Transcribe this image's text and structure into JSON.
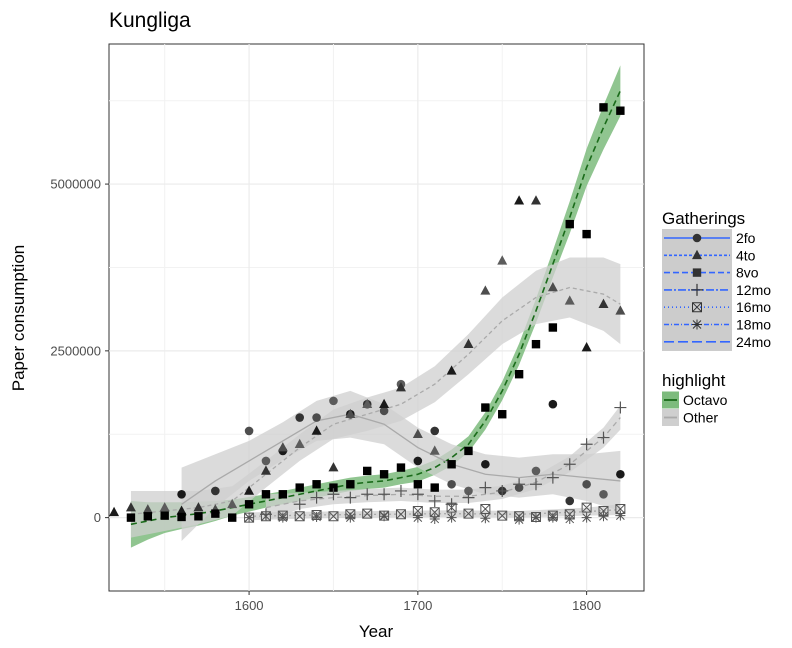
{
  "chart_data": {
    "type": "scatter",
    "title": "Kungliga",
    "xlabel": "Year",
    "ylabel": "Paper consumption",
    "xlim": [
      1517,
      1834
    ],
    "ylim": [
      -1100000,
      7100000
    ],
    "xticks": [
      1600,
      1700,
      1800
    ],
    "yticks": [
      0,
      2500000,
      5000000
    ],
    "xtick_labels": [
      "1600",
      "1700",
      "1800"
    ],
    "ytick_labels": [
      "0",
      "2500000",
      "5000000"
    ],
    "grid": true,
    "legend_position": "right",
    "legend_gatherings_title": "Gatherings",
    "legend_highlight_title": "highlight",
    "colors": {
      "octavo": "#1a6b1a",
      "octavo_band": "#7dbb7d",
      "other_line": "#aaaaaa",
      "other_band": "#cfcfcf",
      "legend_line": "#3366ff"
    },
    "series": [
      {
        "name": "2fo",
        "shape": "circle",
        "x": [
          1560,
          1580,
          1600,
          1610,
          1620,
          1630,
          1640,
          1650,
          1660,
          1670,
          1680,
          1690,
          1700,
          1710,
          1720,
          1730,
          1740,
          1750,
          1760,
          1770,
          1780,
          1790,
          1800,
          1810,
          1820
        ],
        "y": [
          350000,
          400000,
          1300000,
          850000,
          1000000,
          1500000,
          1500000,
          1750000,
          1550000,
          1700000,
          1600000,
          2000000,
          850000,
          1300000,
          500000,
          400000,
          800000,
          400000,
          450000,
          700000,
          1700000,
          250000,
          500000,
          350000,
          650000
        ]
      },
      {
        "name": "4to",
        "shape": "triangle",
        "x": [
          1520,
          1530,
          1540,
          1550,
          1560,
          1570,
          1580,
          1590,
          1600,
          1610,
          1620,
          1630,
          1640,
          1650,
          1660,
          1670,
          1680,
          1690,
          1700,
          1710,
          1720,
          1730,
          1740,
          1750,
          1760,
          1770,
          1780,
          1790,
          1800,
          1810,
          1820
        ],
        "y": [
          80000,
          150000,
          120000,
          150000,
          100000,
          150000,
          120000,
          200000,
          400000,
          700000,
          1050000,
          1100000,
          1300000,
          750000,
          1550000,
          1700000,
          1700000,
          1950000,
          1250000,
          1000000,
          2200000,
          2600000,
          3400000,
          3850000,
          4750000,
          4750000,
          3450000,
          3250000,
          2550000,
          3200000,
          3100000
        ]
      },
      {
        "name": "8vo",
        "shape": "square",
        "x": [
          1530,
          1540,
          1550,
          1560,
          1570,
          1580,
          1590,
          1600,
          1610,
          1620,
          1630,
          1640,
          1650,
          1660,
          1670,
          1680,
          1690,
          1700,
          1710,
          1720,
          1730,
          1740,
          1750,
          1760,
          1770,
          1780,
          1790,
          1800,
          1810,
          1820
        ],
        "y": [
          0,
          20000,
          30000,
          10000,
          20000,
          60000,
          0,
          200000,
          350000,
          350000,
          450000,
          500000,
          450000,
          500000,
          700000,
          650000,
          750000,
          500000,
          450000,
          800000,
          1000000,
          1650000,
          1550000,
          2150000,
          2600000,
          2850000,
          4400000,
          4250000,
          6150000,
          6100000
        ]
      },
      {
        "name": "12mo",
        "shape": "plus",
        "x": [
          1610,
          1630,
          1640,
          1650,
          1660,
          1670,
          1680,
          1690,
          1700,
          1710,
          1720,
          1730,
          1740,
          1750,
          1760,
          1770,
          1780,
          1790,
          1800,
          1810,
          1820
        ],
        "y": [
          50000,
          200000,
          300000,
          350000,
          300000,
          350000,
          350000,
          400000,
          350000,
          250000,
          200000,
          300000,
          450000,
          400000,
          500000,
          500000,
          600000,
          800000,
          1100000,
          1200000,
          1650000
        ]
      },
      {
        "name": "16mo",
        "shape": "boxx",
        "x": [
          1600,
          1610,
          1620,
          1630,
          1640,
          1650,
          1660,
          1670,
          1680,
          1690,
          1700,
          1710,
          1720,
          1730,
          1740,
          1750,
          1760,
          1770,
          1780,
          1790,
          1800,
          1810,
          1820
        ],
        "y": [
          0,
          20000,
          30000,
          20000,
          40000,
          20000,
          50000,
          60000,
          30000,
          50000,
          100000,
          80000,
          150000,
          60000,
          130000,
          30000,
          20000,
          10000,
          30000,
          50000,
          150000,
          100000,
          130000
        ]
      },
      {
        "name": "18mo",
        "shape": "star",
        "x": [
          1600,
          1620,
          1640,
          1660,
          1680,
          1700,
          1710,
          1720,
          1740,
          1760,
          1770,
          1780,
          1790,
          1800,
          1810,
          1820
        ],
        "y": [
          0,
          0,
          10000,
          0,
          20000,
          0,
          -20000,
          0,
          -10000,
          -30000,
          0,
          0,
          -20000,
          0,
          20000,
          30000
        ]
      },
      {
        "name": "24mo",
        "shape": "none",
        "x": [],
        "y": []
      }
    ],
    "smooth": [
      {
        "name": "Octavo",
        "dash": "6,4",
        "x": [
          1530,
          1540,
          1550,
          1560,
          1570,
          1580,
          1590,
          1600,
          1610,
          1620,
          1630,
          1640,
          1650,
          1660,
          1670,
          1680,
          1690,
          1700,
          1710,
          1720,
          1730,
          1740,
          1750,
          1760,
          1770,
          1780,
          1790,
          1800,
          1810,
          1820
        ],
        "y": [
          -100000,
          -50000,
          0,
          30000,
          60000,
          100000,
          150000,
          200000,
          250000,
          300000,
          350000,
          400000,
          450000,
          500000,
          530000,
          550000,
          600000,
          650000,
          750000,
          900000,
          1100000,
          1450000,
          1900000,
          2450000,
          3100000,
          3800000,
          4500000,
          5250000,
          5850000,
          6400000
        ],
        "band": [
          350000,
          280000,
          230000,
          200000,
          180000,
          150000,
          120000,
          110000,
          100000,
          100000,
          100000,
          100000,
          100000,
          100000,
          100000,
          100000,
          100000,
          110000,
          110000,
          120000,
          120000,
          130000,
          140000,
          160000,
          180000,
          200000,
          240000,
          280000,
          330000,
          380000
        ]
      },
      {
        "name": "4to",
        "dash": "4,3",
        "x": [
          1530,
          1550,
          1570,
          1590,
          1610,
          1630,
          1650,
          1670,
          1690,
          1710,
          1730,
          1750,
          1770,
          1790,
          1810,
          1820
        ],
        "y": [
          50000,
          100000,
          150000,
          250000,
          650000,
          1050000,
          1400000,
          1550000,
          1700000,
          2000000,
          2450000,
          2950000,
          3300000,
          3450000,
          3350000,
          3200000
        ],
        "band": [
          350000,
          300000,
          250000,
          220000,
          200000,
          200000,
          220000,
          250000,
          250000,
          270000,
          300000,
          350000,
          400000,
          450000,
          550000,
          600000
        ]
      },
      {
        "name": "2fo",
        "dash": "",
        "x": [
          1560,
          1580,
          1600,
          1620,
          1640,
          1660,
          1680,
          1700,
          1720,
          1740,
          1760,
          1780,
          1800,
          1820
        ],
        "y": [
          200000,
          550000,
          850000,
          1150000,
          1450000,
          1550000,
          1400000,
          1050000,
          800000,
          650000,
          600000,
          650000,
          600000,
          550000
        ],
        "band": [
          550000,
          400000,
          300000,
          280000,
          300000,
          350000,
          300000,
          300000,
          300000,
          300000,
          300000,
          300000,
          350000,
          450000
        ]
      },
      {
        "name": "12mo",
        "dash": "5,4",
        "x": [
          1610,
          1630,
          1650,
          1670,
          1690,
          1710,
          1730,
          1750,
          1770,
          1790,
          1810,
          1820
        ],
        "y": [
          150000,
          250000,
          300000,
          330000,
          350000,
          320000,
          320000,
          380000,
          530000,
          800000,
          1200000,
          1500000
        ],
        "band": [
          200000,
          120000,
          100000,
          100000,
          100000,
          100000,
          100000,
          100000,
          100000,
          120000,
          150000,
          180000
        ]
      },
      {
        "name": "16mo",
        "dash": "2,3",
        "x": [
          1600,
          1640,
          1680,
          1720,
          1760,
          1800,
          1820
        ],
        "y": [
          20000,
          40000,
          50000,
          60000,
          50000,
          90000,
          120000
        ],
        "band": [
          60000,
          50000,
          50000,
          50000,
          50000,
          60000,
          80000
        ]
      }
    ],
    "legend_gatherings": [
      "2fo",
      "4to",
      "8vo",
      "12mo",
      "16mo",
      "18mo",
      "24mo"
    ],
    "legend_highlight": [
      "Octavo",
      "Other"
    ]
  }
}
